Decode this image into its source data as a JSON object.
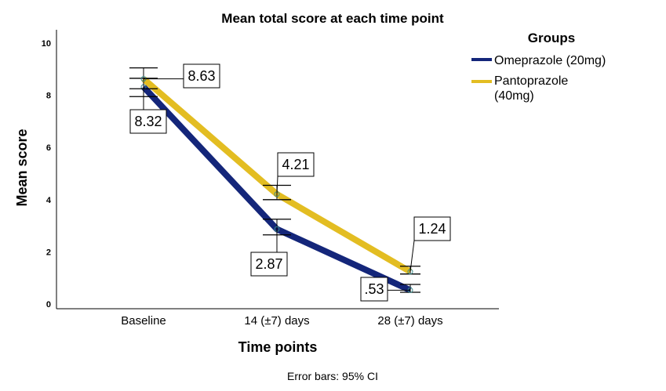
{
  "chart_data": {
    "type": "line",
    "title": "Mean total score at each time point",
    "xlabel": "Time points",
    "ylabel": "Mean score",
    "categories": [
      "Baseline",
      "14 (±7) days",
      "28 (±7) days"
    ],
    "ylim": [
      0,
      10
    ],
    "yticks": [
      "0",
      "2",
      "4",
      "6",
      "8",
      "10"
    ],
    "legend_title": "Groups",
    "legend_position": "top-right",
    "footnote": "Error bars: 95% CI",
    "series": [
      {
        "name": "Omeprazole (20mg)",
        "color": "#14267a",
        "values": [
          8.32,
          2.87,
          0.53
        ],
        "labels": [
          "8.32",
          "2.87",
          ".53"
        ],
        "ci_lower": [
          7.95,
          2.65,
          0.45
        ],
        "ci_upper": [
          8.65,
          3.25,
          0.75
        ]
      },
      {
        "name": "Pantoprazole (40mg)",
        "color": "#e3bd22",
        "values": [
          8.63,
          4.21,
          1.24
        ],
        "labels": [
          "8.63",
          "4.21",
          "1.24"
        ],
        "ci_lower": [
          8.25,
          4.0,
          1.15
        ],
        "ci_upper": [
          9.05,
          4.55,
          1.45
        ]
      }
    ]
  }
}
